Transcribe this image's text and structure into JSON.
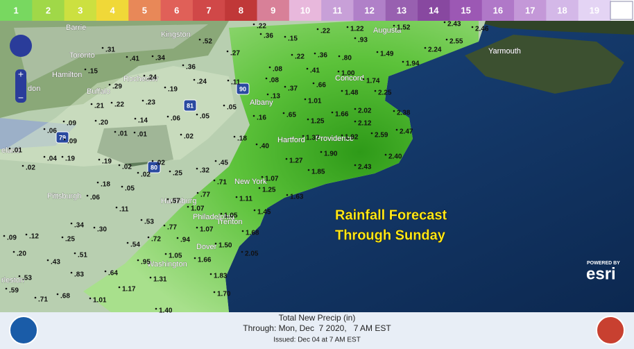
{
  "legend": {
    "items": [
      {
        "label": "1",
        "color": "#78d860"
      },
      {
        "label": "2",
        "color": "#a0d848"
      },
      {
        "label": "3",
        "color": "#cce040"
      },
      {
        "label": "4",
        "color": "#f0d838"
      },
      {
        "label": "5",
        "color": "#e88858"
      },
      {
        "label": "6",
        "color": "#e06058"
      },
      {
        "label": "7",
        "color": "#d04848"
      },
      {
        "label": "8",
        "color": "#c03838"
      },
      {
        "label": "9",
        "color": "#d88098"
      },
      {
        "label": "10",
        "color": "#e8b8dc"
      },
      {
        "label": "11",
        "color": "#c8a0d8"
      },
      {
        "label": "12",
        "color": "#b080c8"
      },
      {
        "label": "13",
        "color": "#9860b0"
      },
      {
        "label": "14",
        "color": "#8848a0"
      },
      {
        "label": "15",
        "color": "#9c58b4"
      },
      {
        "label": "16",
        "color": "#b078c8"
      },
      {
        "label": "17",
        "color": "#c498d8"
      },
      {
        "label": "18",
        "color": "#d4b8e8"
      },
      {
        "label": "19",
        "color": "#e4d4f4"
      }
    ]
  },
  "map": {
    "places": [
      "Barrie",
      "Toronto",
      "Hamilton",
      "Buffalo",
      "Rochester",
      "Kingston",
      "Albany",
      "Concord",
      "Augusta",
      "Yarmouth",
      "Hartford",
      "Providence",
      "New York",
      "Trenton",
      "Harrisburg",
      "Philadelphia",
      "Pittsburgh",
      "Dover",
      "Washington",
      "don",
      "eland",
      "rleston"
    ],
    "highways": [
      "90",
      "81",
      "79",
      "80"
    ],
    "rainfall_labels": [
      ".22",
      ".36",
      ".15",
      ".22",
      "1.22",
      "1.52",
      "2.43",
      "2.46",
      ".93",
      "2.55",
      "2.24",
      "1.49",
      "1.94",
      ".52",
      ".27",
      ".31",
      ".41",
      ".34",
      ".36",
      ".22",
      ".36",
      ".80",
      ".08",
      ".41",
      "1.00",
      "1.74",
      ".15",
      ".24",
      ".24",
      ".11",
      ".08",
      ".66",
      ".37",
      "1.48",
      "2.25",
      ".29",
      ".19",
      ".13",
      "1.01",
      "1.66",
      "2.02",
      "2.38",
      ".21",
      ".22",
      ".23",
      ".05",
      ".65",
      ".09",
      ".20",
      ".14",
      ".06",
      ".05",
      ".16",
      "1.25",
      "2.12",
      "2.47",
      ".06",
      ".01",
      ".01",
      ".02",
      ".18",
      "1.37",
      "1.92",
      "2.59",
      ".09",
      ".01",
      ".04",
      ".19",
      ".19",
      ".02",
      ".02",
      ".40",
      "1.90",
      "2.40",
      ".45",
      "1.27",
      "2.43",
      ".02",
      ".32",
      ".25",
      ".02",
      "1.85",
      ".71",
      "1.07",
      ".18",
      ".05",
      "1.25",
      ".77",
      ".06",
      "1.63",
      ".57",
      "1.11",
      ".11",
      "1.07",
      "1.05",
      "1.45",
      ".34",
      ".30",
      ".53",
      ".77",
      "1.07",
      ".09",
      ".12",
      ".25",
      ".72",
      ".94",
      "1.68",
      ".54",
      "1.50",
      ".20",
      ".51",
      "1.05",
      "2.05",
      ".43",
      ".95",
      "1.66",
      ".64",
      ".83",
      "1.31",
      "1.83",
      ".53",
      "1.17",
      ".59",
      ".68",
      "1.70",
      ".71",
      "1.01",
      "1.40"
    ]
  },
  "overlay": {
    "line1": "Rainfall Forecast",
    "line2": "Through Sunday"
  },
  "attribution": {
    "powered_by": "POWERED BY",
    "brand": "esri"
  },
  "footer": {
    "title": "Total New Precip (in)",
    "through": "Through: Mon, Dec  7 2020,   7 AM EST",
    "issued": "Issued: Dec 04 at 7 AM EST"
  }
}
